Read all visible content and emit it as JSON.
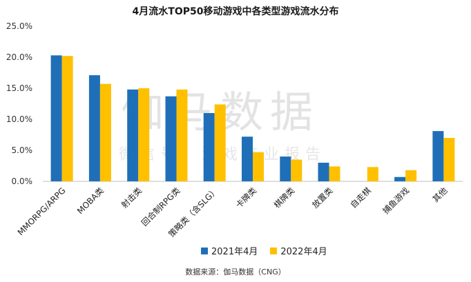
{
  "watermark": {
    "main": "伽马数据",
    "sub": "微信号：游戏产业报告"
  },
  "chart_data": {
    "type": "bar",
    "title": "4月流水TOP50移动游戏中各类型游戏流水分布",
    "categories": [
      "MMORPG/ARPG",
      "MOBA类",
      "射击类",
      "回合制RPG类",
      "策略类（含SLG）",
      "卡牌类",
      "棋牌类",
      "放置类",
      "自走棋",
      "捕鱼游戏",
      "其他"
    ],
    "series": [
      {
        "name": "2021年4月",
        "color": "#1f6fb8",
        "values": [
          20.3,
          17.1,
          14.8,
          13.7,
          11.0,
          7.2,
          4.0,
          3.0,
          null,
          0.7,
          8.1
        ]
      },
      {
        "name": "2022年4月",
        "color": "#ffc000",
        "values": [
          20.2,
          15.7,
          15.0,
          14.8,
          12.4,
          4.7,
          3.5,
          2.4,
          2.3,
          1.8,
          7.0
        ]
      }
    ],
    "y_ticks": [
      "0.0%",
      "5.0%",
      "10.0%",
      "15.0%",
      "20.0%",
      "25.0%"
    ],
    "ylim": [
      0,
      25
    ],
    "xlabel": "",
    "ylabel": "",
    "grid": false,
    "legend_position": "bottom"
  },
  "source": "数据来源：伽马数据（CNG）"
}
